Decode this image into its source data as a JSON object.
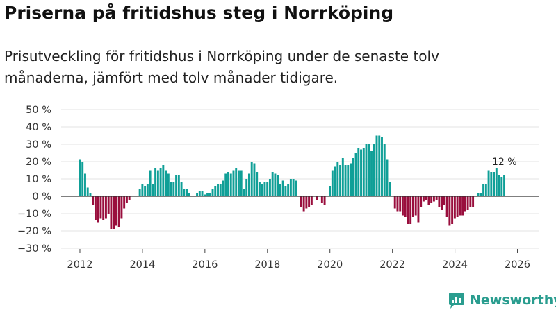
{
  "header": {
    "title": "Priserna på fritidshus steg i Norrköping",
    "subtitle": "Prisutveckling för fritidshus i Norrköping under de senaste tolv månaderna, jämfört med tolv månader tidigare."
  },
  "brand": {
    "name": "Newsworthy"
  },
  "colors": {
    "positive": "#0f9f97",
    "negative": "#990e3d",
    "zero_line": "#333333",
    "grid": "#e3e3e3",
    "brand": "#2a9d8f"
  },
  "chart_data": {
    "type": "bar",
    "title": "Priserna på fritidshus steg i Norrköping",
    "xlabel": "",
    "ylabel": "",
    "x_unit": "year (monthly bars)",
    "x_start": 2012.0,
    "x_step": 0.0833,
    "xlim": [
      2011.4,
      2026.7
    ],
    "ylim": [
      -30,
      50
    ],
    "yticks": [
      -30,
      -20,
      -10,
      0,
      10,
      20,
      30,
      40,
      50
    ],
    "ytick_labels": [
      "−30 %",
      "−20 %",
      "−10 %",
      "0 %",
      "10 %",
      "20 %",
      "30 %",
      "40 %",
      "50 %"
    ],
    "xticks": [
      2012,
      2014,
      2016,
      2018,
      2020,
      2022,
      2024,
      2026
    ],
    "xtick_labels": [
      "2012",
      "2014",
      "2016",
      "2018",
      "2020",
      "2022",
      "2024",
      "2026"
    ],
    "grid": true,
    "last_label": "12 %",
    "values": [
      21,
      20,
      13,
      5,
      2,
      -5,
      -14,
      -15,
      -13,
      -14,
      -13,
      -10,
      -19,
      -19,
      -17,
      -18,
      -13,
      -7,
      -4,
      -2,
      0,
      0,
      0,
      4,
      7,
      6,
      7,
      15,
      7,
      16,
      15,
      16,
      18,
      15,
      13,
      8,
      8,
      12,
      12,
      8,
      4,
      4,
      2,
      0,
      0,
      2,
      3,
      3,
      1,
      2,
      2,
      4,
      6,
      7,
      7,
      9,
      13,
      14,
      13,
      15,
      16,
      15,
      15,
      4,
      10,
      13,
      20,
      19,
      14,
      8,
      7,
      8,
      8,
      10,
      14,
      13,
      12,
      7,
      9,
      6,
      7,
      10,
      10,
      9,
      0,
      -6,
      -9,
      -7,
      -6,
      -5,
      0,
      -2,
      0,
      -4,
      -5,
      0,
      6,
      15,
      17,
      20,
      18,
      22,
      18,
      18,
      19,
      22,
      25,
      28,
      27,
      28,
      30,
      30,
      26,
      30,
      35,
      35,
      34,
      30,
      21,
      8,
      0,
      -7,
      -9,
      -9,
      -11,
      -12,
      -16,
      -16,
      -12,
      -11,
      -15,
      -6,
      -3,
      -2,
      -5,
      -4,
      -3,
      -2,
      -6,
      -8,
      -5,
      -12,
      -17,
      -16,
      -13,
      -12,
      -11,
      -11,
      -9,
      -8,
      -6,
      -6,
      0,
      2,
      2,
      7,
      7,
      15,
      14,
      14,
      16,
      12,
      11,
      12
    ]
  }
}
